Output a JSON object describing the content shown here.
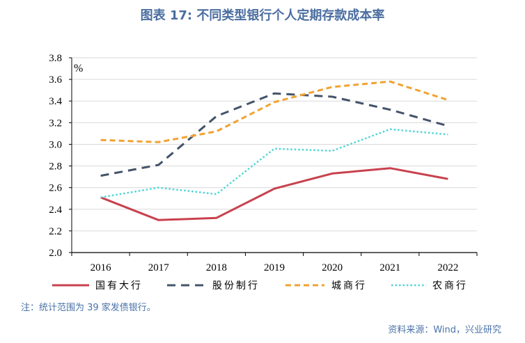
{
  "theme": {
    "heading_color": "#4a6d9f",
    "footnote_color": "#4a72a8"
  },
  "note": "注：统计范围为 39 家发债银行。",
  "source": "资料来源：Wind，兴业研究",
  "chart_data": {
    "type": "line",
    "title": "图表 17: 不同类型银行个人定期存款成本率",
    "categories": [
      "2016",
      "2017",
      "2018",
      "2019",
      "2020",
      "2021",
      "2022"
    ],
    "y_unit": "%",
    "ylim": [
      2.0,
      3.8
    ],
    "y_ticks": [
      "2.0",
      "2.2",
      "2.4",
      "2.6",
      "2.8",
      "3.0",
      "3.2",
      "3.4",
      "3.6",
      "3.8"
    ],
    "grid": "horizontal",
    "legend_position": "bottom",
    "series": [
      {
        "name": "国有大行",
        "color": "#c8414e",
        "line_style": "solid",
        "values": [
          2.51,
          2.3,
          2.32,
          2.59,
          2.73,
          2.78,
          2.68
        ]
      },
      {
        "name": "股份制行",
        "color": "#44546a",
        "line_style": "long-dashed",
        "values": [
          2.71,
          2.81,
          3.26,
          3.47,
          3.44,
          3.32,
          3.17
        ]
      },
      {
        "name": "城商行",
        "color": "#f2a230",
        "line_style": "dashed",
        "values": [
          3.04,
          3.02,
          3.12,
          3.39,
          3.53,
          3.58,
          3.41
        ]
      },
      {
        "name": "农商行",
        "color": "#4fd5d5",
        "line_style": "dotted",
        "values": [
          2.51,
          2.6,
          2.54,
          2.96,
          2.94,
          3.14,
          3.09
        ]
      }
    ]
  }
}
